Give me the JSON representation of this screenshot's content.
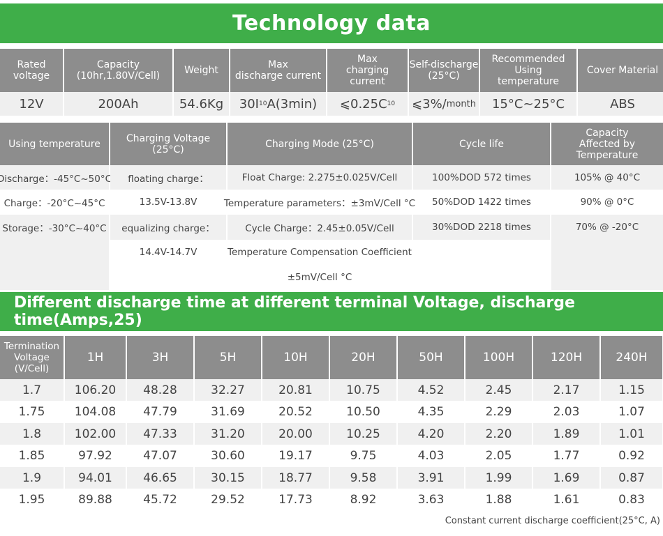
{
  "title": "Technology data",
  "tech_table": {
    "headers": [
      "Rated\nvoltage",
      "Capacity\n(10hr,1.80V/Cell)",
      "Weight",
      "Max\ndischarge current",
      "Max\ncharging current",
      "Self-discharge\n(25°C)",
      "Recommended\nUsing\ntemperature",
      "Cover Material"
    ],
    "values": {
      "rated_voltage": "12V",
      "capacity": "200Ah",
      "weight": "54.6Kg",
      "max_discharge_pre": "30I",
      "max_discharge_sub": "10",
      "max_discharge_post": "A(3min)",
      "max_charge_pre": "⩽0.25C",
      "max_charge_sub": "10",
      "self_discharge_main": "⩽3%/",
      "self_discharge_unit": "month",
      "recommended_temp": "15°C~25°C",
      "cover_material": "ABS"
    }
  },
  "spec_table": {
    "headers": [
      "Using temperature",
      "Charging Voltage\n(25°C)",
      "Charging Mode (25°C)",
      "Cycle life",
      "Capacity\nAffected by\nTemperature"
    ],
    "rows": [
      [
        "Discharge：-45°C~50°C",
        "floating charge：",
        "Float Charge: 2.275±0.025V/Cell",
        "100%DOD 572 times",
        "105% @ 40°C"
      ],
      [
        "Charge：-20°C~45°C",
        "13.5V-13.8V",
        "Temperature parameters：±3mV/Cell  °C",
        "50%DOD 1422 times",
        "90% @ 0°C"
      ],
      [
        "Storage：-30°C~40°C",
        "equalizing charge：",
        "Cycle Charge：2.45±0.05V/Cell",
        "30%DOD 2218 times",
        "70% @ -20°C"
      ],
      [
        "",
        "14.4V-14.7V",
        "Temperature Compensation Coefficient",
        "",
        ""
      ],
      [
        "",
        "",
        "±5mV/Cell   °C",
        "",
        ""
      ]
    ]
  },
  "discharge_title": "Different discharge time at different terminal Voltage, discharge time(Amps,25)",
  "discharge_table": {
    "headers": [
      "Termination\nVoltage\n(V/Cell)",
      "1H",
      "3H",
      "5H",
      "10H",
      "20H",
      "50H",
      "100H",
      "120H",
      "240H"
    ],
    "rows": [
      [
        "1.7",
        "106.20",
        "48.28",
        "32.27",
        "20.81",
        "10.75",
        "4.52",
        "2.45",
        "2.17",
        "1.15"
      ],
      [
        "1.75",
        "104.08",
        "47.79",
        "31.69",
        "20.52",
        "10.50",
        "4.35",
        "2.29",
        "2.03",
        "1.07"
      ],
      [
        "1.8",
        "102.00",
        "47.33",
        "31.20",
        "20.00",
        "10.25",
        "4.20",
        "2.20",
        "1.89",
        "1.01"
      ],
      [
        "1.85",
        "97.92",
        "47.07",
        "30.60",
        "19.17",
        "9.75",
        "4.03",
        "2.05",
        "1.77",
        "0.92"
      ],
      [
        "1.9",
        "94.01",
        "46.65",
        "30.15",
        "18.77",
        "9.58",
        "3.91",
        "1.99",
        "1.69",
        "0.87"
      ],
      [
        "1.95",
        "89.88",
        "45.72",
        "29.52",
        "17.73",
        "8.92",
        "3.63",
        "1.88",
        "1.61",
        "0.83"
      ]
    ]
  },
  "footnote": "Constant current discharge coefficient(25°C, A)",
  "colors": {
    "banner_green": "#3fae49",
    "header_gray": "#8d8d8d",
    "row_shade": "#f0f0f0"
  }
}
